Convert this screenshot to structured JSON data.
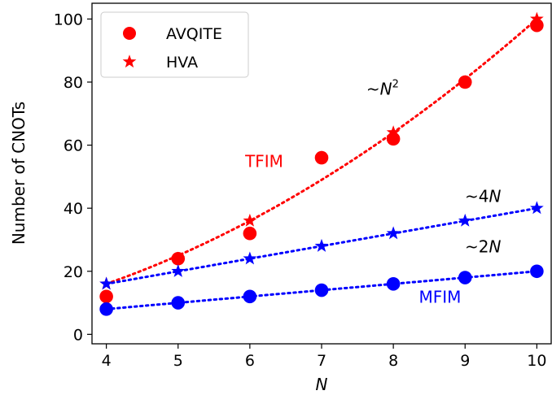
{
  "chart_data": {
    "type": "scatter",
    "xlabel": "N",
    "ylabel": "Number of CNOTs",
    "xlim": [
      3.8,
      10.2
    ],
    "ylim": [
      -3,
      105
    ],
    "xticks": [
      4,
      5,
      6,
      7,
      8,
      9,
      10
    ],
    "yticks": [
      0,
      20,
      40,
      60,
      80,
      100
    ],
    "grid": false,
    "legend_position": "top-left",
    "legend": [
      {
        "label": "AVQITE",
        "marker": "circle",
        "color": "#ff0000"
      },
      {
        "label": "HVA",
        "marker": "star",
        "color": "#ff0000"
      }
    ],
    "series": [
      {
        "marker": "circle",
        "color": "#ff0000",
        "x": [
          4,
          5,
          6,
          7,
          8,
          9,
          10
        ],
        "y": [
          12,
          24,
          32,
          56,
          62,
          80,
          98
        ]
      },
      {
        "marker": "star",
        "color": "#ff0000",
        "x": [
          4,
          5,
          6,
          7,
          8,
          9,
          10
        ],
        "y": [
          16,
          24,
          36,
          56,
          64,
          80,
          100
        ]
      },
      {
        "marker": "circle",
        "color": "#0000ff",
        "x": [
          4,
          5,
          6,
          7,
          8,
          9,
          10
        ],
        "y": [
          8,
          10,
          12,
          14,
          16,
          18,
          20
        ]
      },
      {
        "marker": "star",
        "color": "#0000ff",
        "x": [
          4,
          5,
          6,
          7,
          8,
          9,
          10
        ],
        "y": [
          16,
          20,
          24,
          28,
          32,
          36,
          40
        ]
      }
    ],
    "fits": [
      {
        "color": "#ff0000",
        "x": [
          4,
          5,
          6,
          7,
          8,
          9,
          10
        ],
        "y": [
          16,
          25,
          36,
          49,
          64,
          81,
          100
        ]
      },
      {
        "color": "#0000ff",
        "x": [
          4,
          5,
          6,
          7,
          8,
          9,
          10
        ],
        "y": [
          16,
          20,
          24,
          28,
          32,
          36,
          40
        ]
      },
      {
        "color": "#0000ff",
        "x": [
          4,
          5,
          6,
          7,
          8,
          9,
          10
        ],
        "y": [
          8,
          10,
          12,
          14,
          16,
          18,
          20
        ]
      }
    ],
    "annotations": [
      {
        "text": "TFIM",
        "color": "#ff0000",
        "x": 6.2,
        "y": 53
      },
      {
        "text": "MFIM",
        "color": "#0000ff",
        "x": 8.65,
        "y": 10
      },
      {
        "text": "~N^2",
        "color": "#000000",
        "x": 7.85,
        "y": 76
      },
      {
        "text": "~4N",
        "color": "#000000",
        "x": 9.25,
        "y": 42
      },
      {
        "text": "~2N",
        "color": "#000000",
        "x": 9.25,
        "y": 26
      }
    ]
  }
}
